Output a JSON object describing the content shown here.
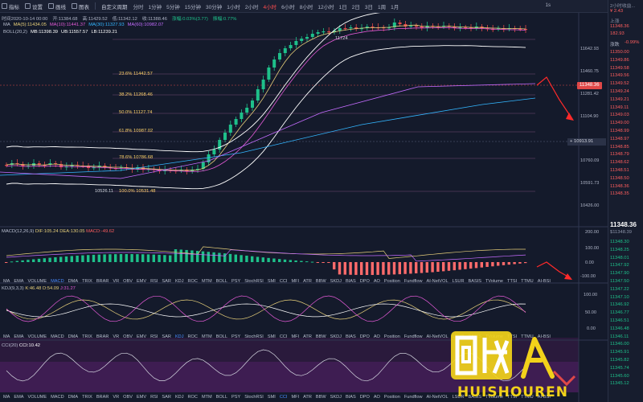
{
  "toolbar": {
    "items": [
      "指标",
      "设置",
      "画线",
      "图表",
      "自定义周期"
    ],
    "timeframes": [
      "分时",
      "1分钟",
      "5分钟",
      "15分钟",
      "30分钟",
      "1小时",
      "2小时",
      "4小时",
      "6小时",
      "8小时",
      "12小时",
      "1日",
      "2日",
      "3日",
      "1周",
      "1月"
    ],
    "active_timeframe": "4小时",
    "right_label": "1s"
  },
  "info": {
    "time": "时间2020-10-14 00:00",
    "open": "开:11384.68",
    "high": "高:11429.52",
    "low": "低:11342.12",
    "close": "收:11388.46",
    "change": "涨幅:0.03%(3.77)",
    "amplitude": "振幅:0.77%"
  },
  "ma_line": {
    "label": "MA",
    "values": [
      "MA(5):11434.05",
      "MA(10):11441.37",
      "MA(30):11327.93",
      "MA(60):10982.07"
    ]
  },
  "boll_line": {
    "label": "BOLL(20,2)",
    "values": [
      "MB:11398.39",
      "UB:11557.57",
      "LB:11239.21"
    ]
  },
  "fib": [
    {
      "label": "23.6% 11442.57"
    },
    {
      "label": "38.2% 11268.46"
    },
    {
      "label": "50.0% 11127.74"
    },
    {
      "label": "61.8% 10987.02"
    },
    {
      "label": "78.6% 10786.68"
    },
    {
      "label": "100.0% 10531.48"
    }
  ],
  "annotations": {
    "high_mark": "11724",
    "low_mark": "10526.11"
  },
  "price_axis": [
    "11642.93",
    "11460.75",
    "11281.42",
    "11104.90",
    "10913.91",
    "10760.09",
    "10591.73",
    "10426.00"
  ],
  "current_price": "11348.36",
  "crosshair_price": "10913.91",
  "indicators_bar": [
    "MA",
    "EMA",
    "VOLUME",
    "MACD",
    "DMA",
    "TRIX",
    "BRAR",
    "VR",
    "OBV",
    "EMV",
    "RSI",
    "SAR",
    "KDJ",
    "ROC",
    "MTM",
    "BOLL",
    "PSY",
    "StochRSI",
    "SMI",
    "CCI",
    "MFI",
    "ATR",
    "BBW",
    "SKDJ",
    "BIAS",
    "DPO",
    "AO",
    "Position",
    "Fundflow",
    "AI-NetVOL",
    "LSUR",
    "BASIS",
    "TVolume",
    "TTSI",
    "TTMU",
    "AI-BSI"
  ],
  "macd": {
    "label": "MACD(12,26,9)",
    "dif": "DIF:105.24",
    "dea": "DEA:130.05",
    "macd": "MACD:-49.62",
    "axis": [
      "200.00",
      "100.00",
      "0.00",
      "-100.00"
    ]
  },
  "kdj": {
    "label": "KDJ(9,3,3)",
    "k": "K:46.48",
    "d": "D:54.09",
    "j": "J:31.27",
    "axis": [
      "100.00",
      "50.00",
      "0.00"
    ]
  },
  "cci": {
    "label": "CCI(20)",
    "cci": "CCI:10.42"
  },
  "right_panel": {
    "top": [
      "2小时收益...",
      "¥ 2.43"
    ],
    "tags": [
      "上涨",
      "11348.36",
      "182.93"
    ],
    "label1": "涨跌",
    "change": "-0.99%",
    "prices": [
      "11350.00",
      "11349.86",
      "11349.58",
      "11349.56",
      "11349.52",
      "11349.24",
      "11349.21",
      "11349.11",
      "11349.03",
      "11349.00",
      "11348.99",
      "11348.97",
      "11348.85",
      "11348.79",
      "11348.62",
      "11348.51",
      "11348.50",
      "11348.36",
      "11348.35"
    ],
    "big_price": "11348.36",
    "sub_price": "$11348.39",
    "prices2": [
      "11348.30",
      "11348.25",
      "11348.01",
      "11347.92",
      "11347.90",
      "11347.50",
      "11347.22",
      "11347.10",
      "11346.92",
      "11346.77",
      "11346.51",
      "11346.48",
      "11346.11",
      "11346.00",
      "11345.91",
      "11345.82",
      "11345.74",
      "11345.60",
      "11345.12"
    ]
  },
  "watermark": {
    "text": "回收人",
    "sub": "HUISHOUREN"
  }
}
